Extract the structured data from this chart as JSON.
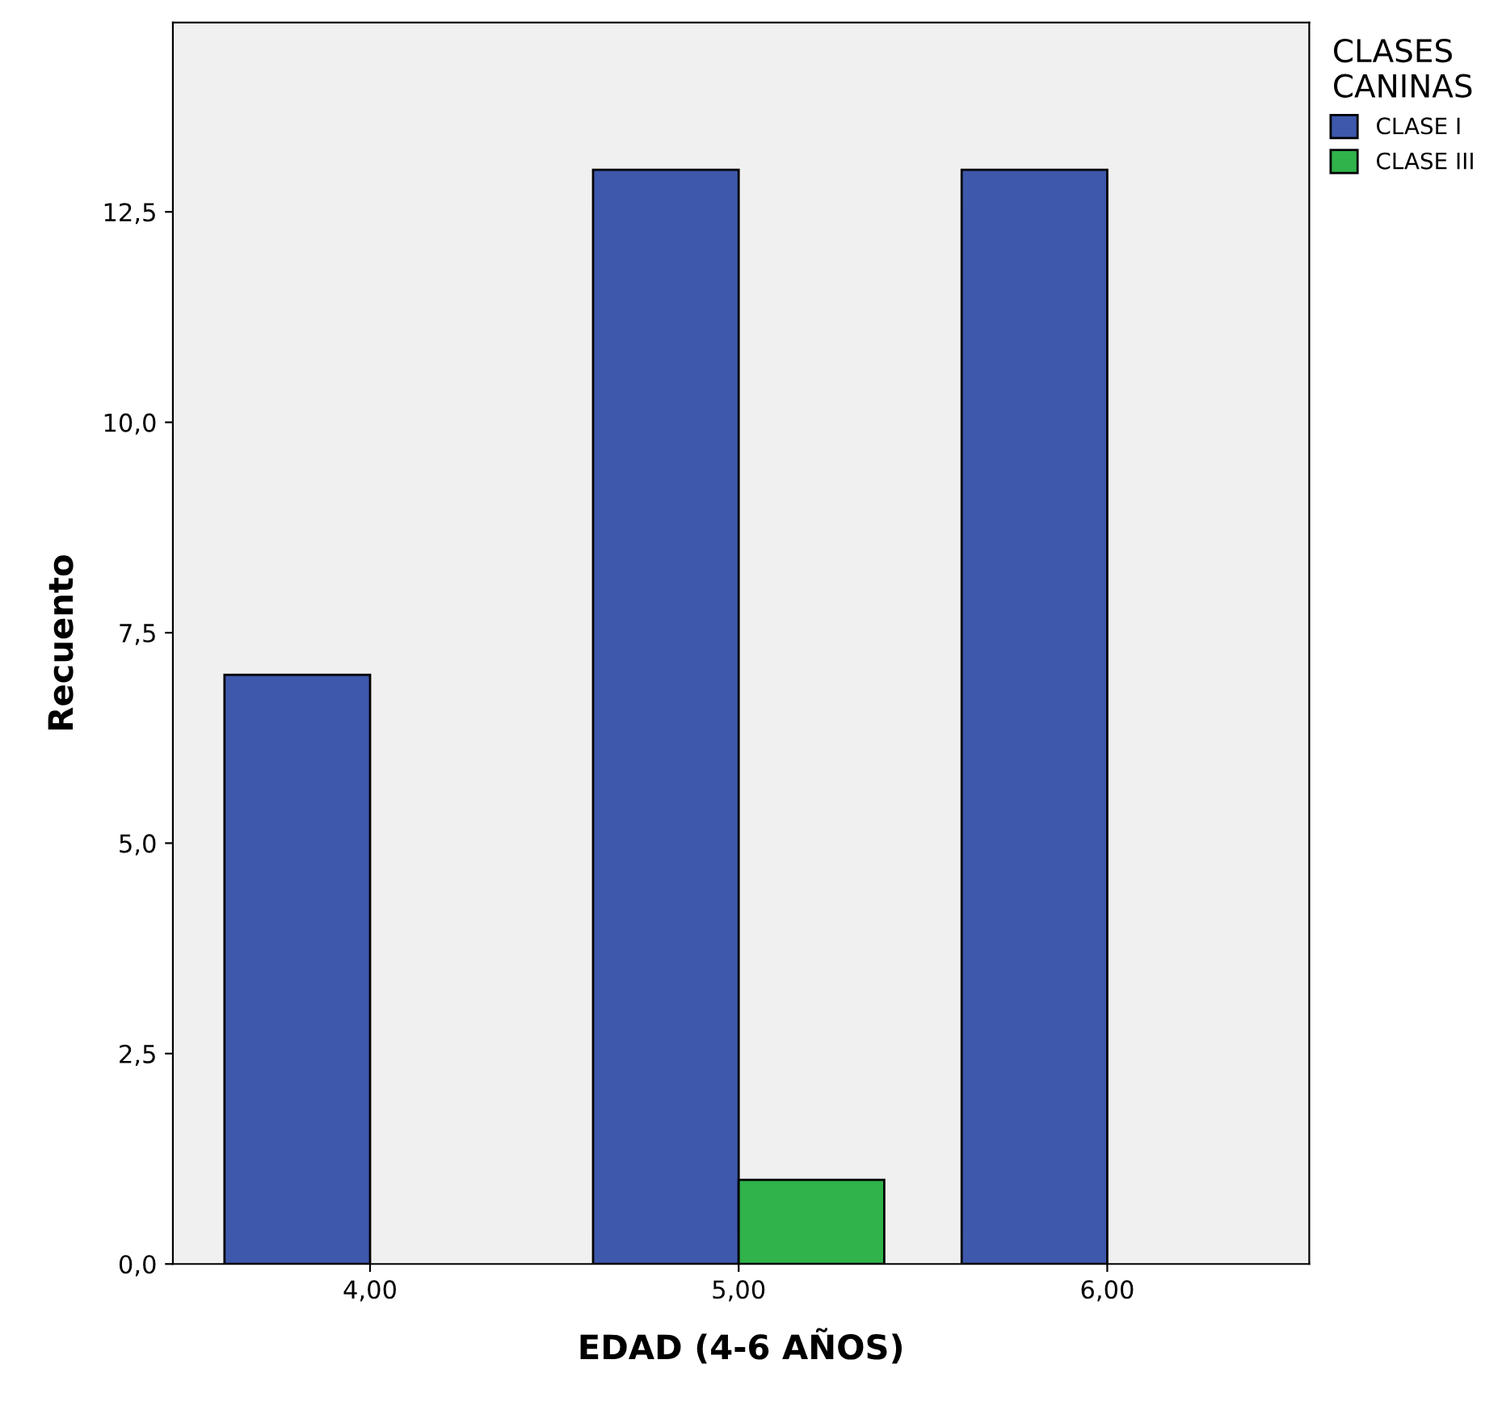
{
  "chart_data": {
    "type": "bar",
    "xlabel": "EDAD (4-6 AÑOS)",
    "ylabel": "Recuento",
    "legend_title": "CLASES\nCANINAS",
    "legend": "top right",
    "grid": false,
    "categories": [
      "4,00",
      "5,00",
      "6,00"
    ],
    "series": [
      {
        "name": "CLASE I",
        "color": "#3e58ac",
        "values": [
          7,
          13,
          13
        ]
      },
      {
        "name": "CLASE III",
        "color": "#2fb34a",
        "values": [
          null,
          1,
          null
        ]
      }
    ],
    "ylim": [
      0,
      14.75
    ],
    "yticks": [
      {
        "value": 0,
        "label": "0,0"
      },
      {
        "value": 2.5,
        "label": "2,5"
      },
      {
        "value": 5,
        "label": "5,0"
      },
      {
        "value": 7.5,
        "label": "7,5"
      },
      {
        "value": 10,
        "label": "10,0"
      },
      {
        "value": 12.5,
        "label": "12,5"
      }
    ]
  }
}
